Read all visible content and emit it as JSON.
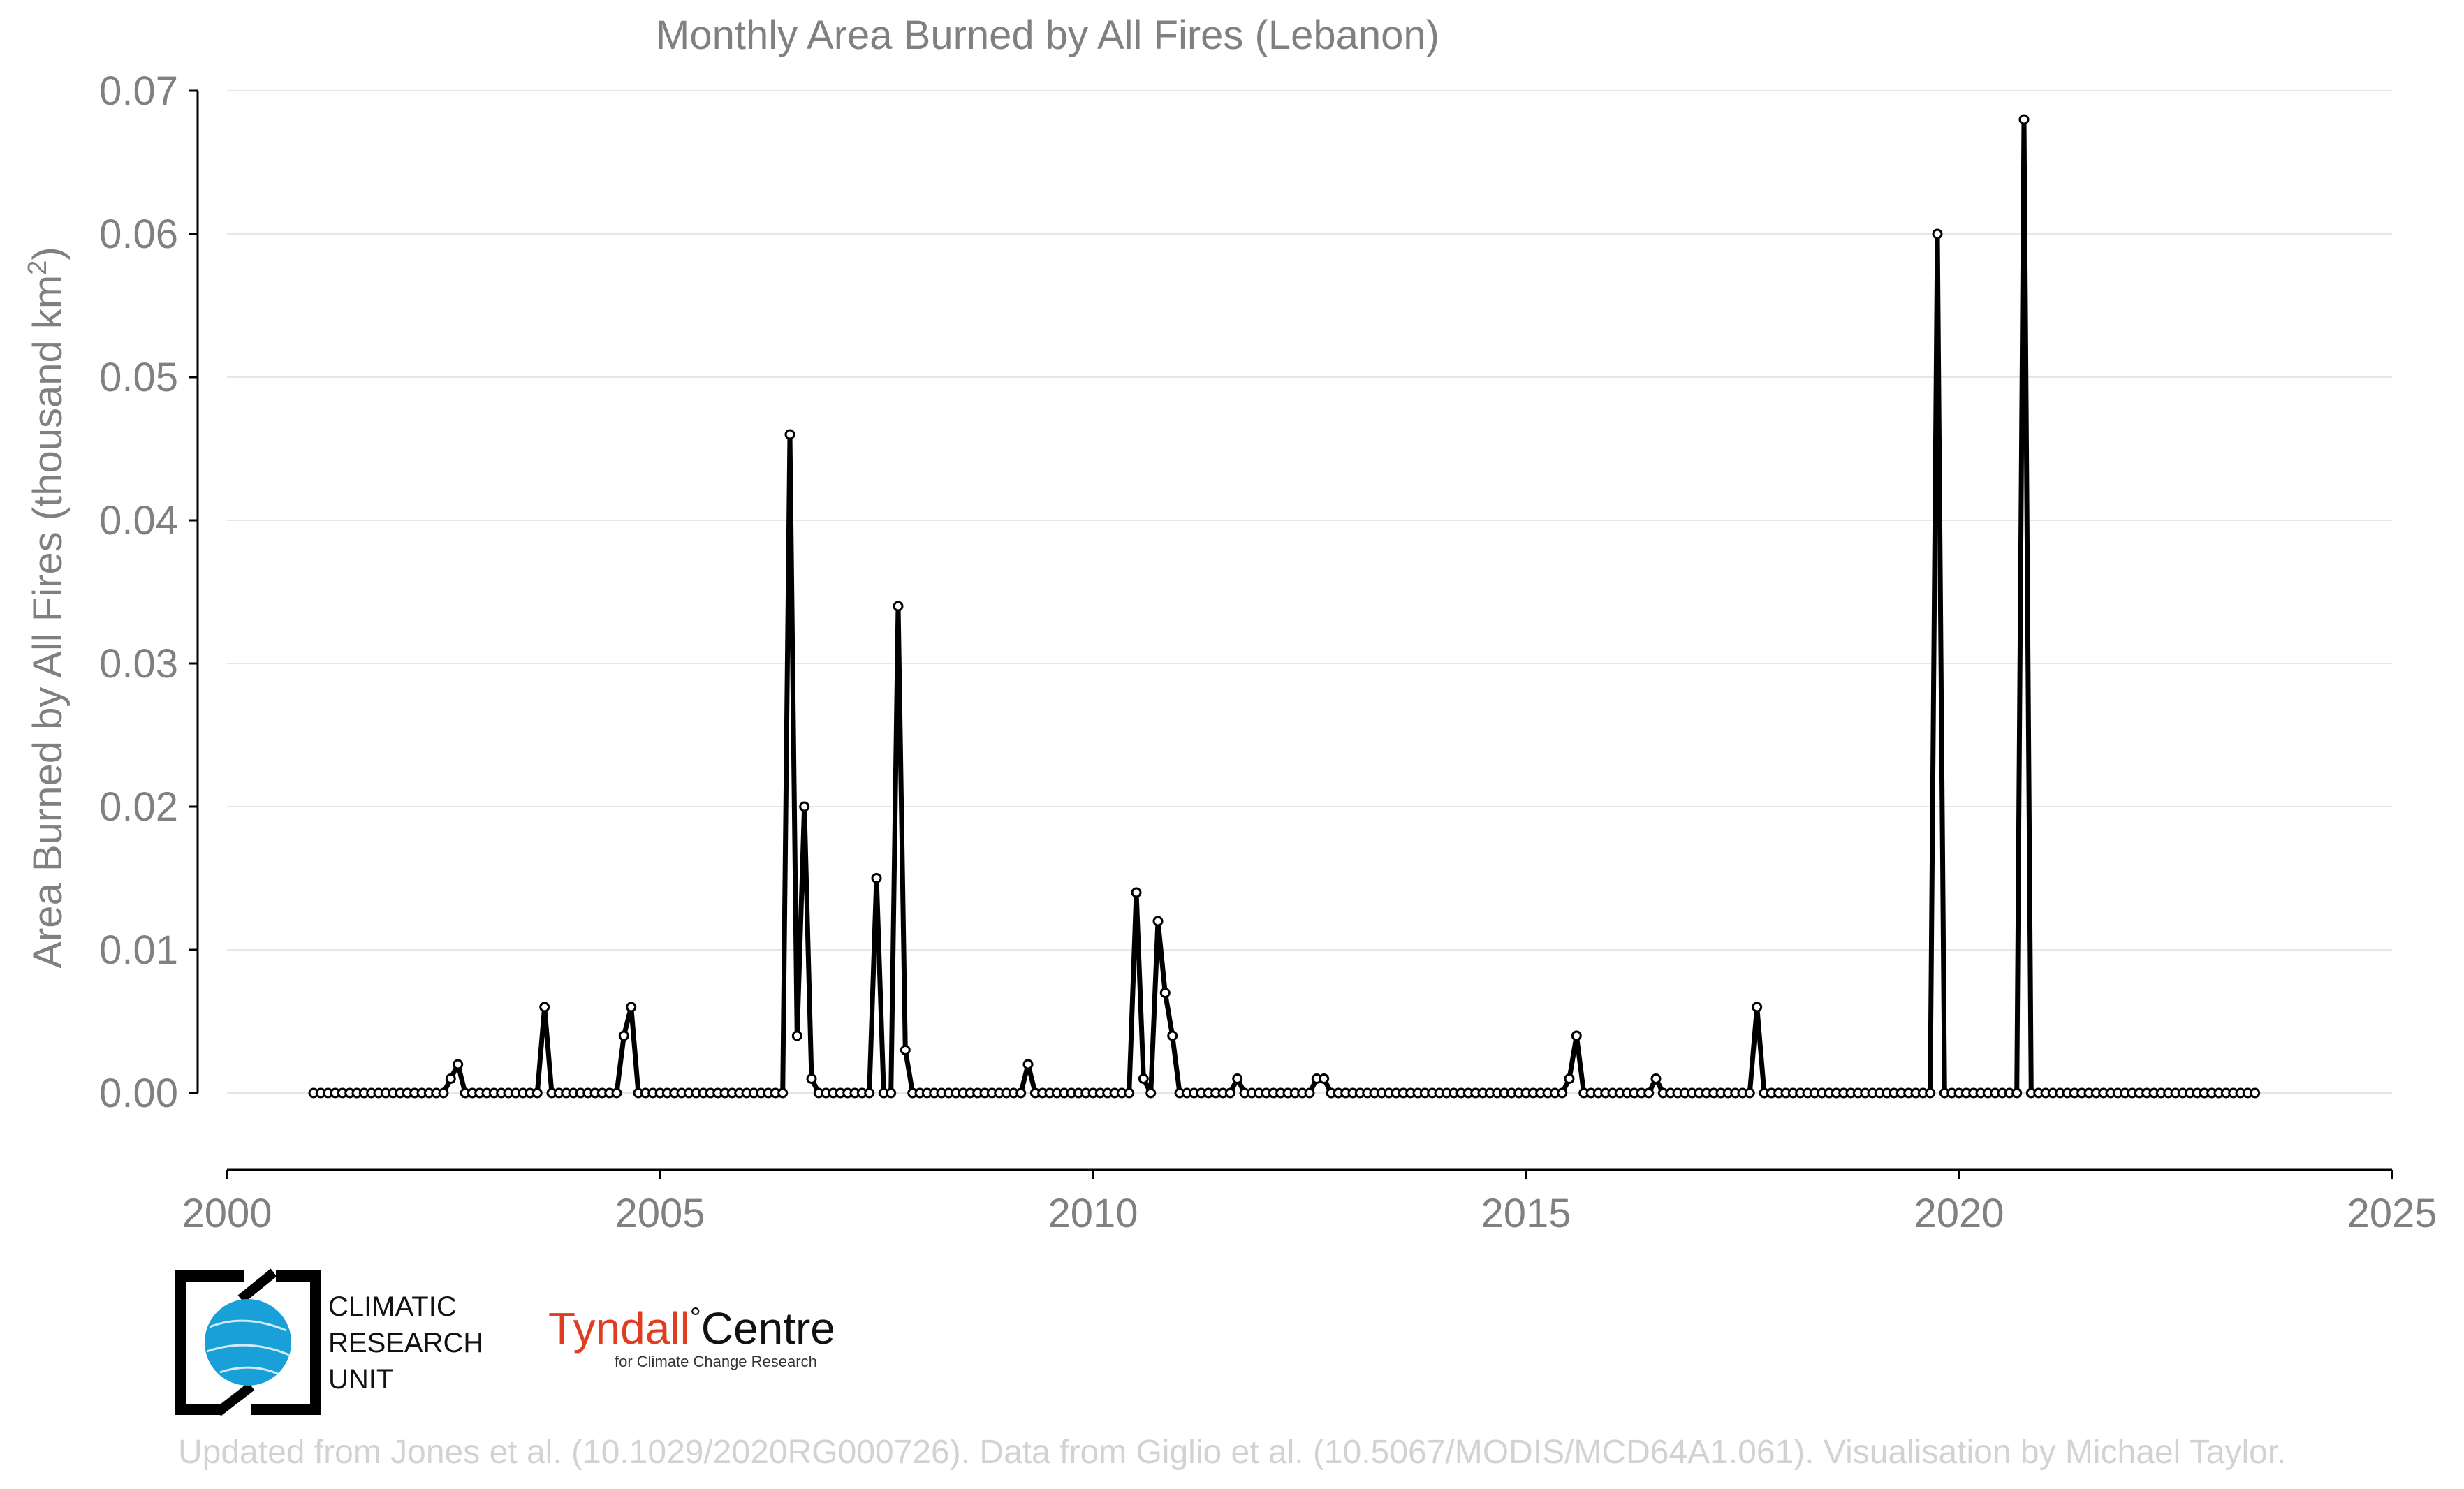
{
  "chart_data": {
    "type": "line",
    "title": "Monthly Area Burned by All Fires (Lebanon)",
    "ylabel": "Area Burned by All Fires (thousand km",
    "ylabel_sup": "2",
    "ylabel_close": ")",
    "xlabel": "",
    "xlim": [
      2000,
      2025
    ],
    "ylim": [
      -0.0055,
      0.07
    ],
    "x_ticks": [
      "2000",
      "2005",
      "2010",
      "2015",
      "2020",
      "2025"
    ],
    "y_ticks": [
      "0.00",
      "0.01",
      "0.02",
      "0.03",
      "0.04",
      "0.05",
      "0.06",
      "0.07"
    ],
    "grid": "horizontal",
    "series": [
      {
        "x_start": "2001-01",
        "x_end": "2023-06",
        "values": [
          0,
          0,
          0,
          0,
          0,
          0,
          0,
          0,
          0,
          0,
          0,
          0,
          0,
          0,
          0,
          0,
          0,
          0,
          0,
          0.001,
          0.002,
          0,
          0,
          0,
          0,
          0,
          0,
          0,
          0,
          0,
          0,
          0,
          0.006,
          0,
          0,
          0,
          0,
          0,
          0,
          0,
          0,
          0,
          0,
          0.004,
          0.006,
          0,
          0,
          0,
          0,
          0,
          0,
          0,
          0,
          0,
          0,
          0,
          0,
          0,
          0,
          0,
          0,
          0,
          0,
          0,
          0,
          0,
          0.046,
          0.004,
          0.02,
          0.001,
          0,
          0,
          0,
          0,
          0,
          0,
          0,
          0,
          0.015,
          0,
          0,
          0.034,
          0.003,
          0,
          0,
          0,
          0,
          0,
          0,
          0,
          0,
          0,
          0,
          0,
          0,
          0,
          0,
          0,
          0,
          0.002,
          0,
          0,
          0,
          0,
          0,
          0,
          0,
          0,
          0,
          0,
          0,
          0,
          0,
          0,
          0.014,
          0.001,
          0,
          0.012,
          0.007,
          0.004,
          0,
          0,
          0,
          0,
          0,
          0,
          0,
          0,
          0.001,
          0,
          0,
          0,
          0,
          0,
          0,
          0,
          0,
          0,
          0,
          0.001,
          0.001,
          0,
          0,
          0,
          0,
          0,
          0,
          0,
          0,
          0,
          0,
          0,
          0,
          0,
          0,
          0,
          0,
          0,
          0,
          0,
          0,
          0,
          0,
          0,
          0,
          0,
          0,
          0,
          0,
          0,
          0,
          0,
          0,
          0,
          0.001,
          0.004,
          0,
          0,
          0,
          0,
          0,
          0,
          0,
          0,
          0,
          0,
          0.001,
          0,
          0,
          0,
          0,
          0,
          0,
          0,
          0,
          0,
          0,
          0,
          0,
          0,
          0.006,
          0,
          0,
          0,
          0,
          0,
          0,
          0,
          0,
          0,
          0,
          0,
          0,
          0,
          0,
          0,
          0,
          0,
          0,
          0,
          0,
          0,
          0,
          0,
          0,
          0.06,
          0,
          0,
          0,
          0,
          0,
          0,
          0,
          0,
          0,
          0,
          0,
          0.068,
          0,
          0,
          0,
          0,
          0,
          0,
          0,
          0,
          0,
          0,
          0,
          0,
          0,
          0,
          0,
          0,
          0,
          0,
          0,
          0,
          0,
          0,
          0,
          0,
          0,
          0,
          0,
          0,
          0,
          0,
          0,
          0
        ]
      }
    ]
  },
  "logos": {
    "cru": [
      "CLIMATIC",
      "RESEARCH",
      "UNIT"
    ],
    "tyndall_word": "Tyndall",
    "tyndall_degree": "°",
    "tyndall_centre": "Centre",
    "tyndall_sub": "for Climate Change Research"
  },
  "footer": "Updated from Jones et al. (10.1029/2020RG000726). Data from Giglio et al. (10.5067/MODIS/MCD64A1.061). Visualisation by Michael Taylor.",
  "colors": {
    "line": "#000000",
    "marker_fill": "#ffffff",
    "text": "#808080",
    "grid": "#e6e6e6",
    "footer": "#d2d2d2",
    "cru_blue": "#1aa0d8",
    "tyndall_red": "#e03c1f"
  }
}
